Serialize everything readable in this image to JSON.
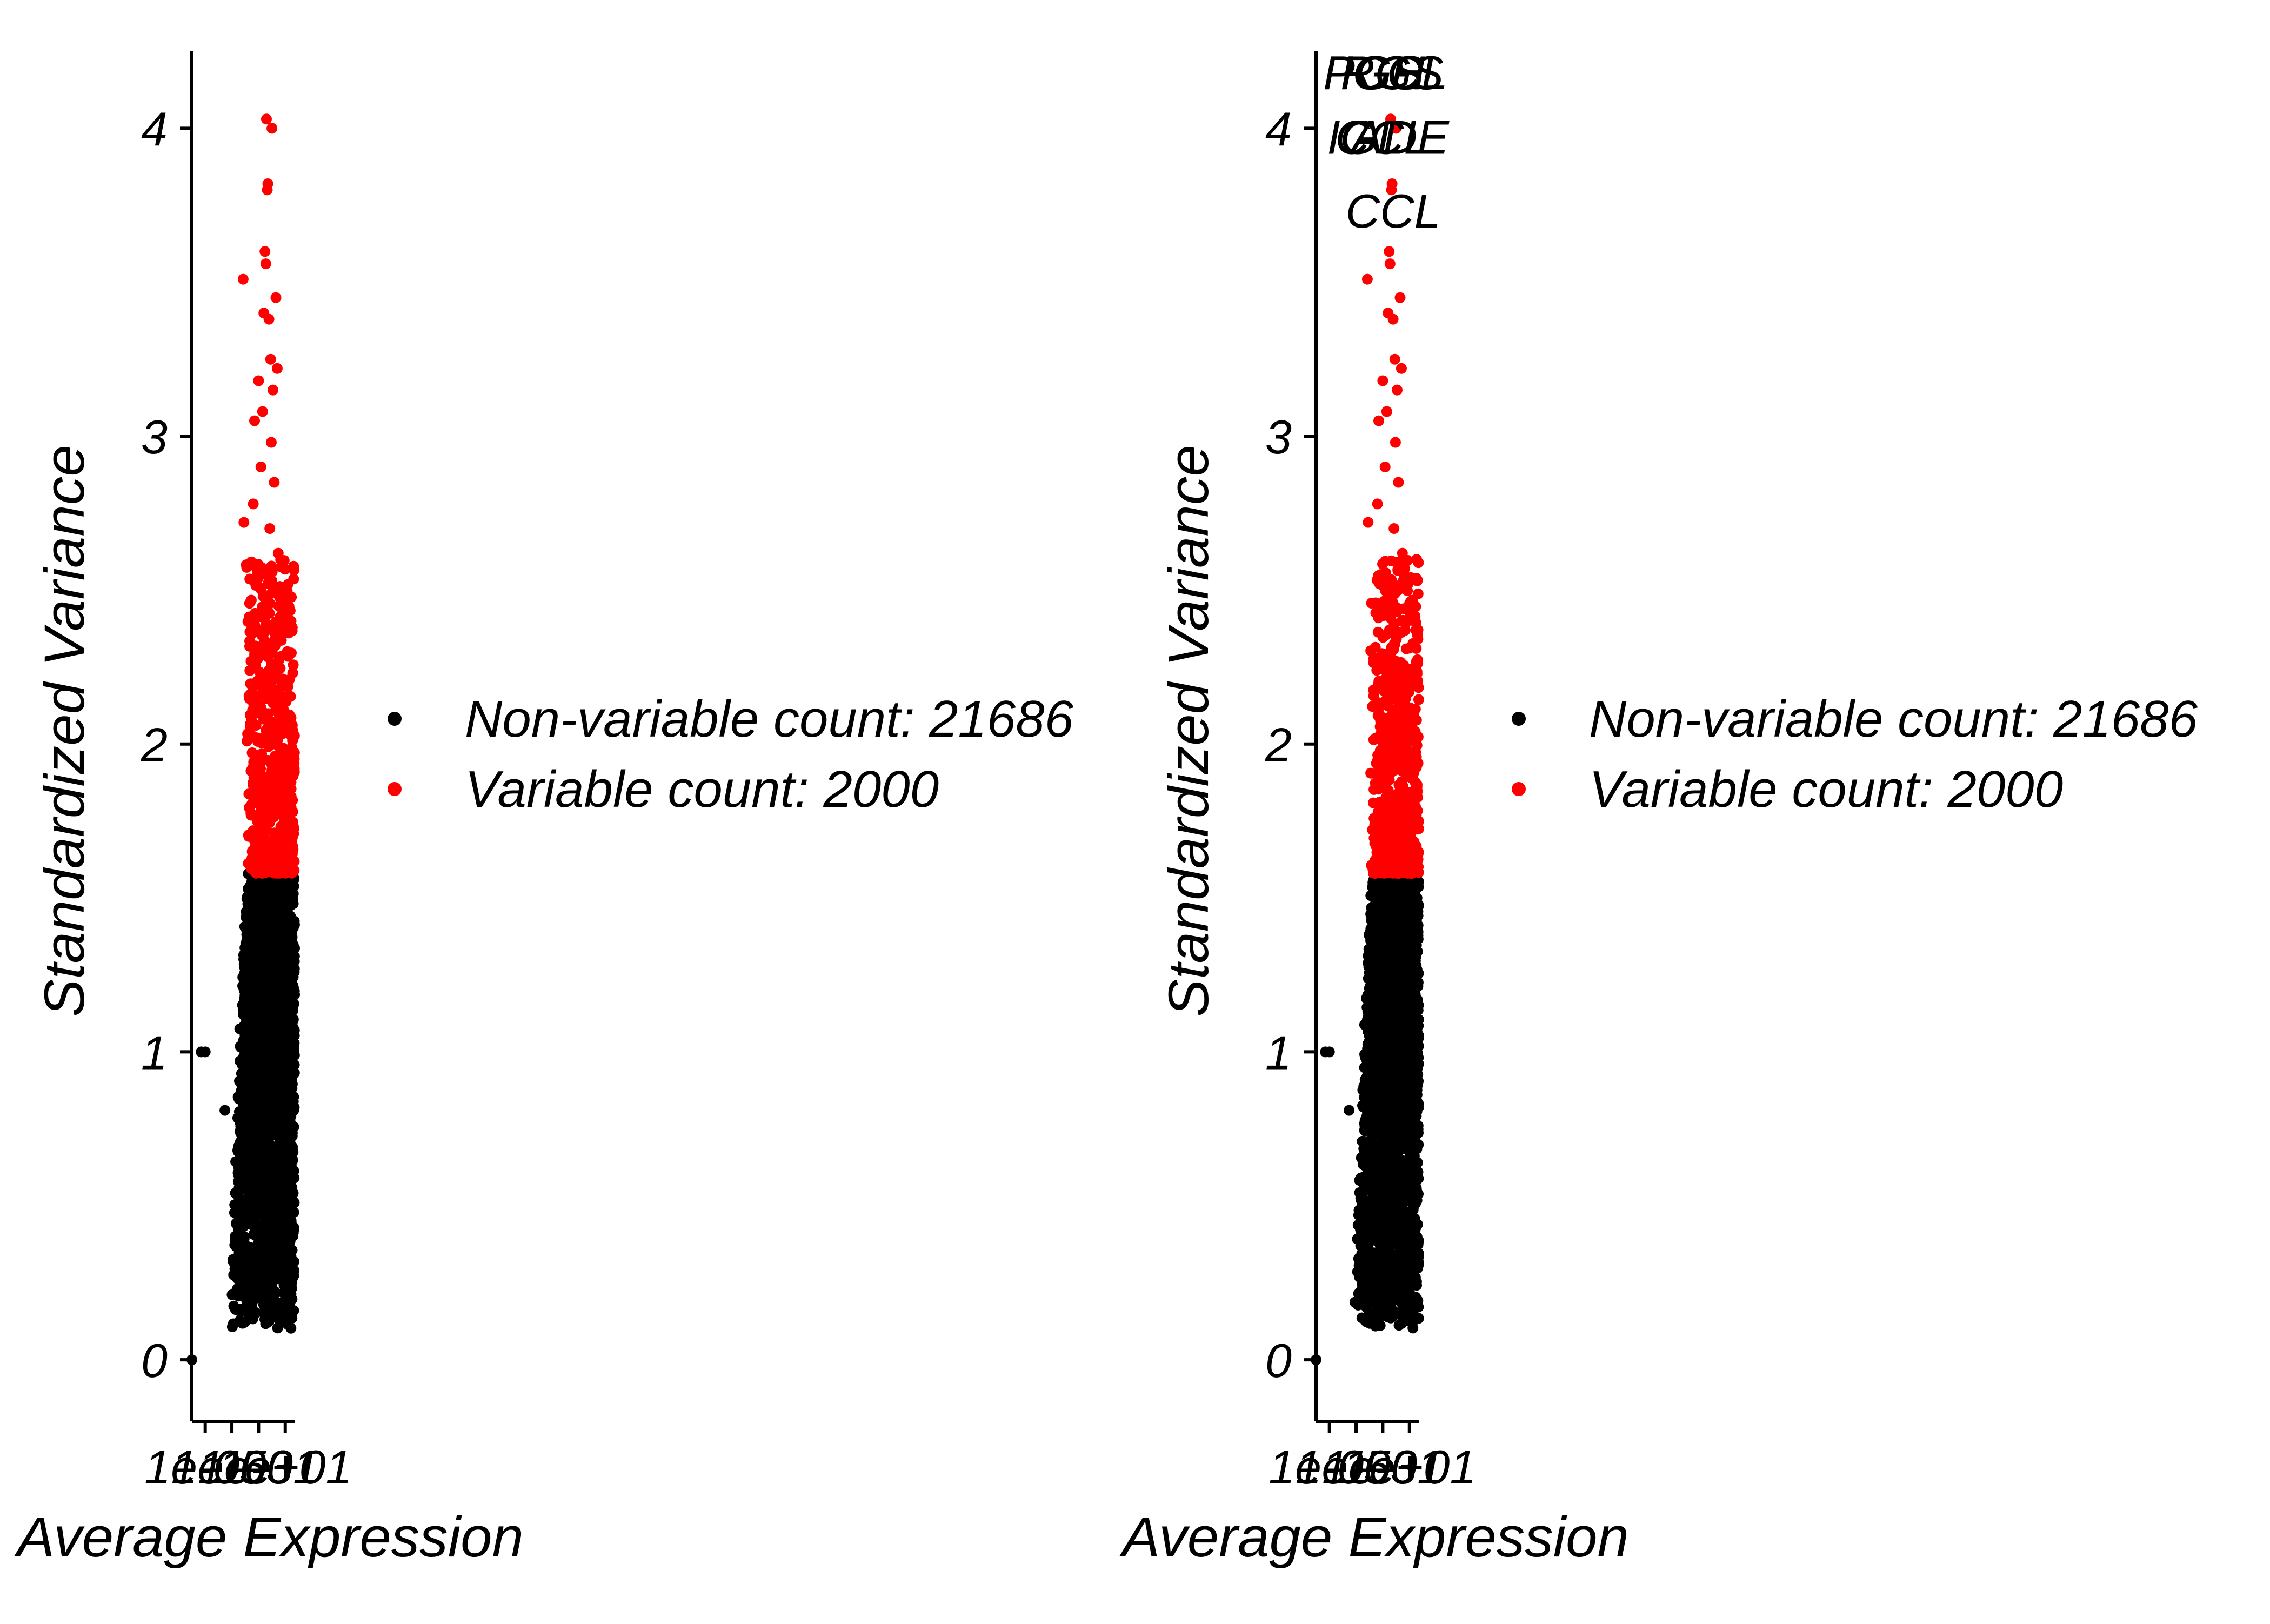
{
  "colors": {
    "non_variable": "#000000",
    "variable": "#ff0000",
    "axis": "#000000",
    "background": "#ffffff"
  },
  "chart_data": [
    {
      "type": "scatter",
      "panel": "left",
      "xlabel": "Average Expression",
      "ylabel": "Standardized Variance",
      "x_scale": "log10",
      "x_tick_labels": [
        "1e-05",
        "1e-03",
        "1e-01",
        "1e+01"
      ],
      "x_tick_label_rendering": "overlapping",
      "xlim": [
        1e-06,
        50
      ],
      "ylim": [
        -0.2,
        4.25
      ],
      "y_ticks": [
        0,
        1,
        2,
        3,
        4
      ],
      "grid": false,
      "legend_position": "right",
      "threshold_y": 1.58,
      "series": [
        {
          "name": "Non-variable count: 21686",
          "color": "#000000",
          "count": 21686,
          "y_range": [
            0.1,
            1.58
          ],
          "x_range_log10": [
            -3.2,
            1.7
          ],
          "outliers": [
            {
              "x": 5e-06,
              "y": 1.0
            },
            {
              "x": 1e-05,
              "y": 1.0
            },
            {
              "x": 1e-06,
              "y": 0.0
            },
            {
              "x": 0.0003,
              "y": 0.81
            }
          ]
        },
        {
          "name": "Variable count: 2000",
          "color": "#ff0000",
          "count": 2000,
          "y_range": [
            1.58,
            2.6
          ],
          "x_range_log10": [
            -2.0,
            1.7
          ],
          "outliers": [
            {
              "x": 0.39,
              "y": 4.03
            },
            {
              "x": 1.0,
              "y": 4.0
            },
            {
              "x": 0.5,
              "y": 3.82
            },
            {
              "x": 0.45,
              "y": 3.8
            },
            {
              "x": 0.3,
              "y": 3.6
            },
            {
              "x": 0.35,
              "y": 3.56
            },
            {
              "x": 0.007,
              "y": 3.51
            },
            {
              "x": 2.0,
              "y": 3.45
            },
            {
              "x": 0.25,
              "y": 3.4
            },
            {
              "x": 0.6,
              "y": 3.38
            },
            {
              "x": 0.8,
              "y": 3.25
            },
            {
              "x": 2.5,
              "y": 3.22
            },
            {
              "x": 0.1,
              "y": 3.18
            },
            {
              "x": 1.2,
              "y": 3.15
            },
            {
              "x": 0.2,
              "y": 3.08
            },
            {
              "x": 0.05,
              "y": 3.05
            },
            {
              "x": 0.9,
              "y": 2.98
            },
            {
              "x": 0.15,
              "y": 2.9
            },
            {
              "x": 1.5,
              "y": 2.85
            },
            {
              "x": 0.04,
              "y": 2.78
            },
            {
              "x": 0.008,
              "y": 2.72
            },
            {
              "x": 0.7,
              "y": 2.7
            },
            {
              "x": 3.0,
              "y": 2.62
            },
            {
              "x": 0.12,
              "y": 2.55
            }
          ]
        }
      ],
      "annotations": []
    },
    {
      "type": "scatter",
      "panel": "right",
      "xlabel": "Average Expression",
      "ylabel": "Standardized Variance",
      "x_scale": "log10",
      "x_tick_labels": [
        "1e-05",
        "1e-03",
        "1e-01",
        "1e+01"
      ],
      "x_tick_label_rendering": "overlapping",
      "xlim": [
        1e-06,
        50
      ],
      "ylim": [
        -0.2,
        4.25
      ],
      "y_ticks": [
        0,
        1,
        2,
        3,
        4
      ],
      "grid": false,
      "legend_position": "right",
      "threshold_y": 1.58,
      "series": [
        {
          "name": "Non-variable count: 21686",
          "color": "#000000",
          "count": 21686,
          "y_range": [
            0.1,
            1.58
          ],
          "x_range_log10": [
            -3.2,
            1.7
          ],
          "outliers": [
            {
              "x": 5e-06,
              "y": 1.0
            },
            {
              "x": 1e-05,
              "y": 1.0
            },
            {
              "x": 1e-06,
              "y": 0.0
            },
            {
              "x": 0.0003,
              "y": 0.81
            }
          ]
        },
        {
          "name": "Variable count: 2000",
          "color": "#ff0000",
          "count": 2000,
          "y_range": [
            1.58,
            2.6
          ],
          "x_range_log10": [
            -2.0,
            1.7
          ],
          "outliers": [
            {
              "x": 0.39,
              "y": 4.03
            },
            {
              "x": 1.0,
              "y": 4.0
            },
            {
              "x": 0.5,
              "y": 3.82
            },
            {
              "x": 0.45,
              "y": 3.8
            },
            {
              "x": 0.3,
              "y": 3.6
            },
            {
              "x": 0.35,
              "y": 3.56
            },
            {
              "x": 0.007,
              "y": 3.51
            },
            {
              "x": 2.0,
              "y": 3.45
            },
            {
              "x": 0.25,
              "y": 3.4
            },
            {
              "x": 0.6,
              "y": 3.38
            },
            {
              "x": 0.8,
              "y": 3.25
            },
            {
              "x": 2.5,
              "y": 3.22
            },
            {
              "x": 0.1,
              "y": 3.18
            },
            {
              "x": 1.2,
              "y": 3.15
            },
            {
              "x": 0.2,
              "y": 3.08
            },
            {
              "x": 0.05,
              "y": 3.05
            },
            {
              "x": 0.9,
              "y": 2.98
            },
            {
              "x": 0.15,
              "y": 2.9
            },
            {
              "x": 1.5,
              "y": 2.85
            },
            {
              "x": 0.04,
              "y": 2.78
            },
            {
              "x": 0.008,
              "y": 2.72
            },
            {
              "x": 0.7,
              "y": 2.7
            },
            {
              "x": 3.0,
              "y": 2.62
            },
            {
              "x": 0.12,
              "y": 2.55
            }
          ]
        }
      ],
      "annotations": [
        {
          "text": "PGS",
          "x": 0.02,
          "y": 4.18
        },
        {
          "text": "RGS",
          "x": 0.5,
          "y": 4.18
        },
        {
          "text": "IGH",
          "x": 0.1,
          "y": 4.18
        },
        {
          "text": "CCL",
          "x": 2.0,
          "y": 4.18
        },
        {
          "text": "IGL",
          "x": 0.005,
          "y": 3.97
        },
        {
          "text": "CCL",
          "x": 0.1,
          "y": 3.97
        },
        {
          "text": "ADE",
          "x": 2.0,
          "y": 3.97
        },
        {
          "text": "CCL",
          "x": 0.6,
          "y": 3.73
        }
      ]
    }
  ]
}
